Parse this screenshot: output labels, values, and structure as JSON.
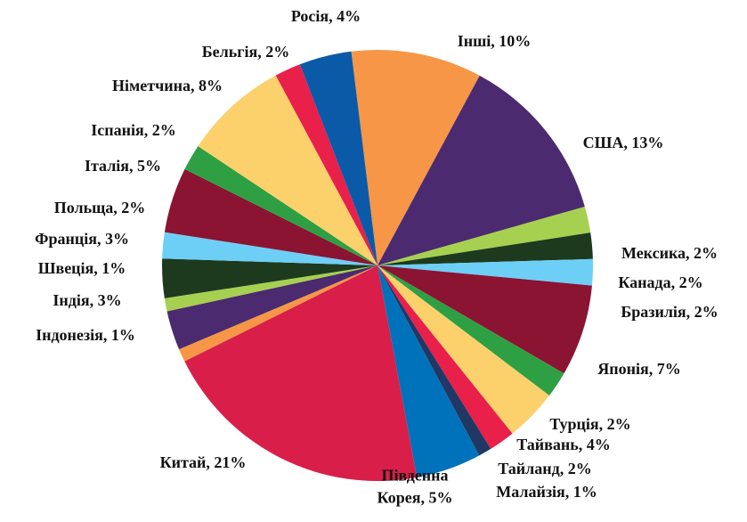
{
  "chart_data": {
    "type": "pie",
    "categories": [
      "Інші",
      "США",
      "Мексика",
      "Канада",
      "Бразилія",
      "Японія",
      "Турція",
      "Тайвань",
      "Тайланд",
      "Малайзія",
      "Південна Корея",
      "Китай",
      "Індонезія",
      "Індія",
      "Швеція",
      "Франція",
      "Польща",
      "Італія",
      "Іспанія",
      "Німетчина",
      "Бельгія",
      "Росія"
    ],
    "values": [
      10,
      13,
      2,
      2,
      2,
      7,
      2,
      4,
      2,
      1,
      5,
      21,
      1,
      3,
      1,
      3,
      2,
      5,
      2,
      8,
      2,
      4
    ],
    "value_labels": [
      [
        "Інші, 10%"
      ],
      [
        "США, 13%"
      ],
      [
        "Мексика, 2%"
      ],
      [
        "Канада, 2%"
      ],
      [
        "Бразилія, 2%"
      ],
      [
        "Японія, 7%"
      ],
      [
        "Турція, 2%"
      ],
      [
        "Тайвань, 4%"
      ],
      [
        "Тайланд, 2%"
      ],
      [
        "Малайзія, 1%"
      ],
      [
        "Південна",
        "Корея, 5%"
      ],
      [
        "Китай, 21%"
      ],
      [
        "Індонезія, 1%"
      ],
      [
        "Індія, 3%"
      ],
      [
        "Швеція, 1%"
      ],
      [
        "Франція, 3%"
      ],
      [
        "Польща, 2%"
      ],
      [
        "Італія, 5%"
      ],
      [
        "Іспанія, 2%"
      ],
      [
        "Німетчина, 8%"
      ],
      [
        "Бельгія, 2%"
      ],
      [
        "Росія, 4%"
      ]
    ],
    "colors": [
      "#f79646",
      "#4b2a6f",
      "#a6d04f",
      "#1e3a1e",
      "#6dcff6",
      "#8b1433",
      "#2ea043",
      "#fcd06b",
      "#e8204a",
      "#1f3864",
      "#0072bc",
      "#d91e4a",
      "#f79646",
      "#4b2a6f",
      "#a6d04f",
      "#1e3a1e",
      "#6dcff6",
      "#8b1433",
      "#2ea043",
      "#fcd06b",
      "#e8204a",
      "#0a5aa8"
    ]
  }
}
